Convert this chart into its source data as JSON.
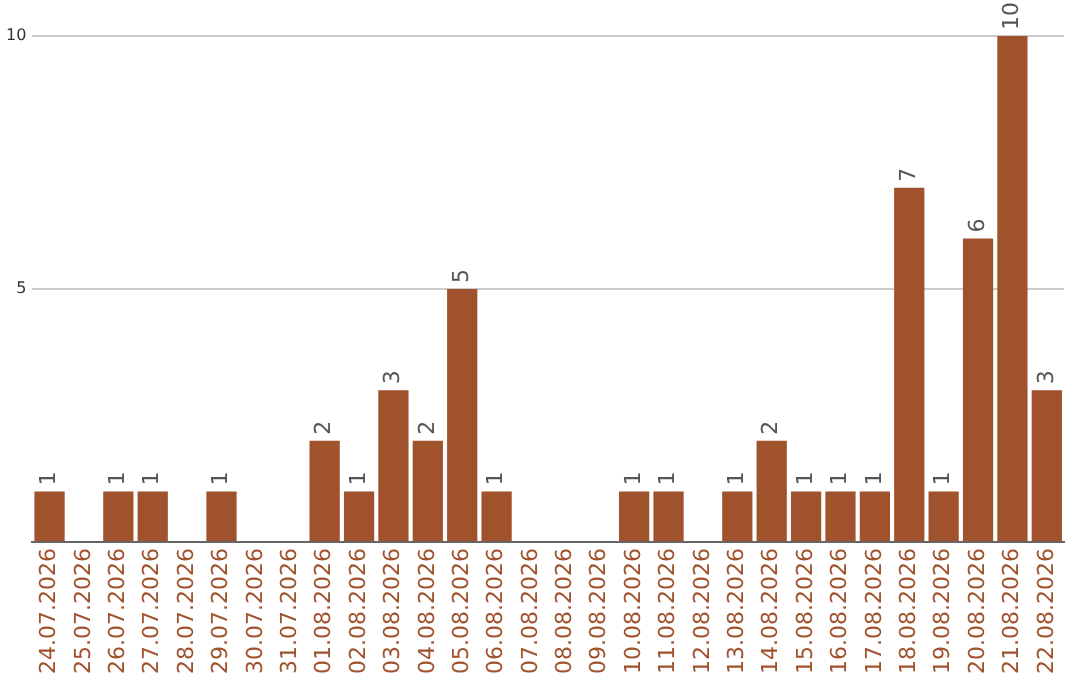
{
  "chart_data": {
    "type": "bar",
    "categories": [
      "24.07.2026",
      "25.07.2026",
      "26.07.2026",
      "27.07.2026",
      "28.07.2026",
      "29.07.2026",
      "30.07.2026",
      "31.07.2026",
      "01.08.2026",
      "02.08.2026",
      "03.08.2026",
      "04.08.2026",
      "05.08.2026",
      "06.08.2026",
      "07.08.2026",
      "08.08.2026",
      "09.08.2026",
      "10.08.2026",
      "11.08.2026",
      "12.08.2026",
      "13.08.2026",
      "14.08.2026",
      "15.08.2026",
      "16.08.2026",
      "17.08.2026",
      "18.08.2026",
      "19.08.2026",
      "20.08.2026",
      "21.08.2026",
      "22.08.2026"
    ],
    "values": [
      1,
      0,
      1,
      1,
      0,
      1,
      0,
      0,
      2,
      1,
      3,
      2,
      5,
      1,
      0,
      0,
      0,
      1,
      1,
      0,
      1,
      2,
      1,
      1,
      1,
      7,
      1,
      6,
      10,
      3
    ],
    "value_labels": [
      "1",
      null,
      "1",
      "1",
      null,
      "1",
      null,
      null,
      "2",
      "1",
      "3",
      "2",
      "5",
      "1",
      null,
      null,
      null,
      "1",
      "1",
      null,
      "1",
      "2",
      "1",
      "1",
      "1",
      "7",
      "1",
      "6",
      "10",
      "3"
    ],
    "color": "#a0522d",
    "ylim": [
      0,
      10
    ],
    "yticks": [
      {
        "value": 0,
        "label": null
      },
      5,
      10
    ],
    "grid": "y",
    "legend": false
  }
}
